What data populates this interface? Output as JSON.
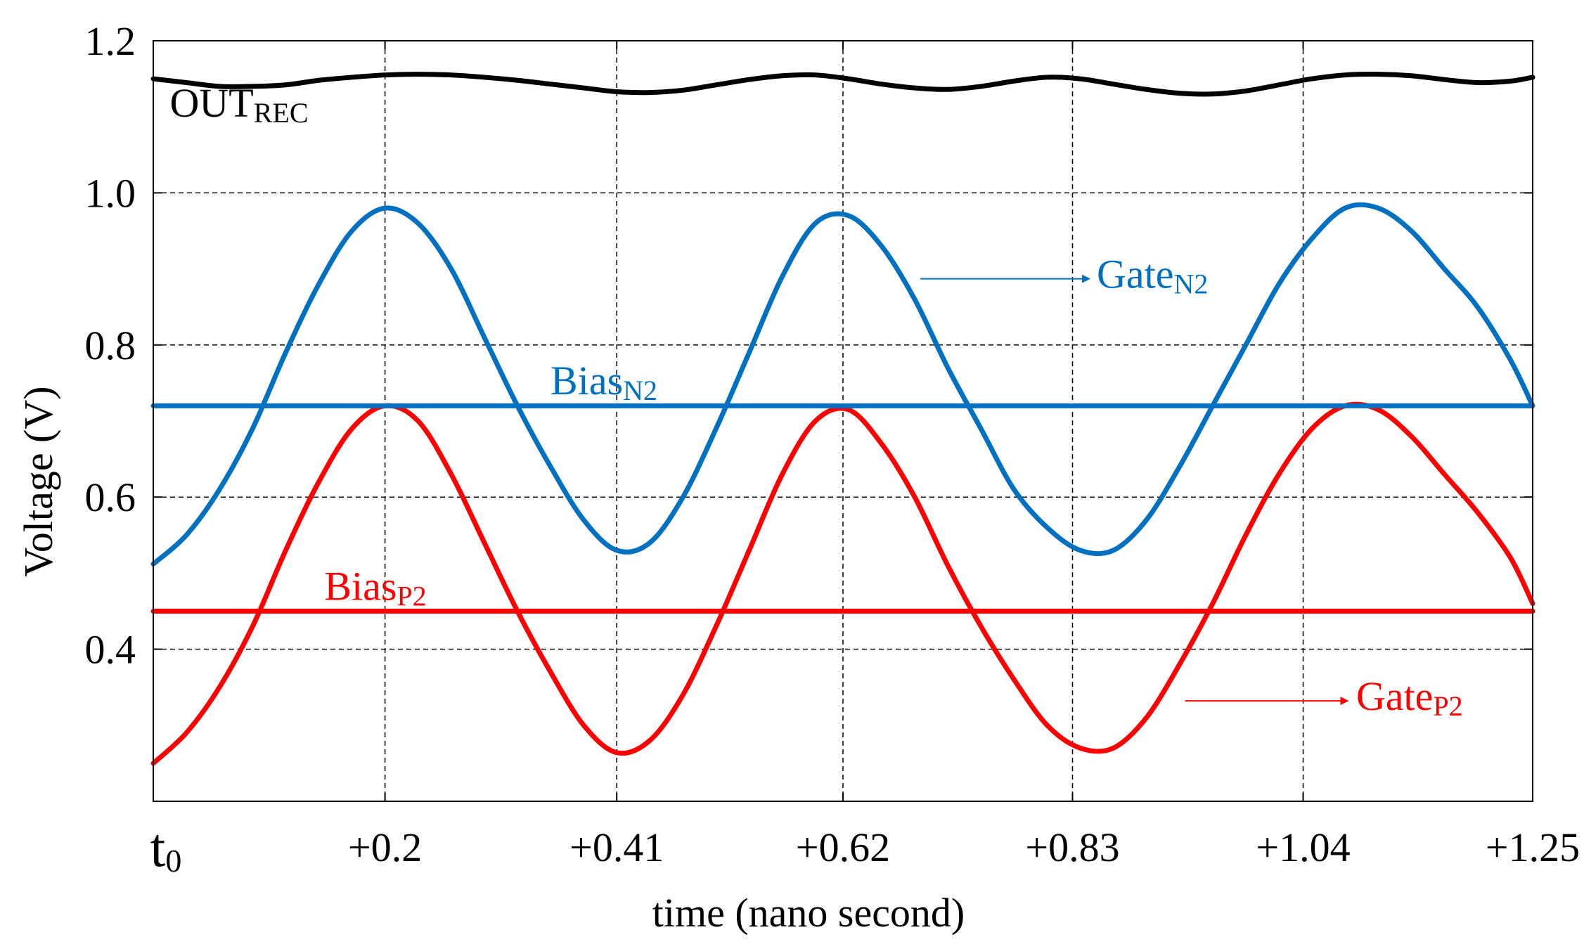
{
  "chart_data": {
    "type": "line",
    "title": "",
    "xlabel": "time (nano second)",
    "ylabel": "Voltage (V)",
    "xlim": [
      0,
      1.25
    ],
    "ylim": [
      0.2,
      1.2
    ],
    "xticks": [
      {
        "value": 0,
        "label": "t",
        "sub": "0"
      },
      {
        "value": 0.21,
        "label": "+0.2",
        "sub": ""
      },
      {
        "value": 0.42,
        "label": "+0.41",
        "sub": ""
      },
      {
        "value": 0.625,
        "label": "+0.62",
        "sub": ""
      },
      {
        "value": 0.833,
        "label": "+0.83",
        "sub": ""
      },
      {
        "value": 1.042,
        "label": "+1.04",
        "sub": ""
      },
      {
        "value": 1.25,
        "label": "+1.25",
        "sub": ""
      }
    ],
    "yticks": [
      {
        "value": 0.4,
        "label": "0.4"
      },
      {
        "value": 0.6,
        "label": "0.6"
      },
      {
        "value": 0.8,
        "label": "0.8"
      },
      {
        "value": 1.0,
        "label": "1.0"
      },
      {
        "value": 1.2,
        "label": "1.2"
      }
    ],
    "grid": true,
    "series": [
      {
        "name": "OUT_REC",
        "color": "#000000",
        "x": [
          0,
          0.03,
          0.06,
          0.09,
          0.12,
          0.15,
          0.18,
          0.21,
          0.24,
          0.27,
          0.3,
          0.33,
          0.36,
          0.39,
          0.42,
          0.45,
          0.48,
          0.51,
          0.54,
          0.57,
          0.6,
          0.63,
          0.66,
          0.69,
          0.72,
          0.75,
          0.78,
          0.81,
          0.84,
          0.87,
          0.9,
          0.93,
          0.96,
          0.99,
          1.02,
          1.05,
          1.08,
          1.11,
          1.14,
          1.17,
          1.2,
          1.23,
          1.25
        ],
        "values": [
          1.15,
          1.145,
          1.14,
          1.14,
          1.142,
          1.148,
          1.152,
          1.155,
          1.156,
          1.155,
          1.152,
          1.148,
          1.143,
          1.138,
          1.133,
          1.132,
          1.135,
          1.142,
          1.149,
          1.154,
          1.155,
          1.15,
          1.143,
          1.138,
          1.136,
          1.14,
          1.147,
          1.152,
          1.15,
          1.143,
          1.136,
          1.131,
          1.13,
          1.134,
          1.142,
          1.15,
          1.155,
          1.156,
          1.154,
          1.149,
          1.145,
          1.147,
          1.152
        ]
      },
      {
        "name": "Gate_N2",
        "color": "#0070c0",
        "x": [
          0,
          0.03,
          0.06,
          0.09,
          0.12,
          0.15,
          0.18,
          0.21,
          0.24,
          0.27,
          0.3,
          0.33,
          0.36,
          0.39,
          0.42,
          0.45,
          0.48,
          0.51,
          0.54,
          0.57,
          0.6,
          0.63,
          0.66,
          0.69,
          0.72,
          0.75,
          0.78,
          0.81,
          0.84,
          0.87,
          0.9,
          0.93,
          0.96,
          0.99,
          1.02,
          1.05,
          1.08,
          1.11,
          1.14,
          1.17,
          1.2,
          1.23,
          1.25
        ],
        "values": [
          0.512,
          0.55,
          0.61,
          0.69,
          0.79,
          0.88,
          0.95,
          0.98,
          0.96,
          0.9,
          0.81,
          0.72,
          0.64,
          0.57,
          0.53,
          0.54,
          0.6,
          0.69,
          0.79,
          0.89,
          0.96,
          0.97,
          0.93,
          0.86,
          0.77,
          0.69,
          0.61,
          0.56,
          0.53,
          0.53,
          0.57,
          0.64,
          0.72,
          0.8,
          0.88,
          0.94,
          0.98,
          0.98,
          0.95,
          0.9,
          0.85,
          0.78,
          0.72
        ]
      },
      {
        "name": "Gate_P2",
        "color": "#ff0000",
        "x": [
          0,
          0.03,
          0.06,
          0.09,
          0.12,
          0.15,
          0.18,
          0.21,
          0.24,
          0.27,
          0.3,
          0.33,
          0.36,
          0.39,
          0.42,
          0.45,
          0.48,
          0.51,
          0.54,
          0.57,
          0.6,
          0.63,
          0.66,
          0.69,
          0.72,
          0.75,
          0.78,
          0.81,
          0.84,
          0.87,
          0.9,
          0.93,
          0.96,
          0.99,
          1.02,
          1.05,
          1.08,
          1.11,
          1.14,
          1.17,
          1.2,
          1.23,
          1.25
        ],
        "values": [
          0.25,
          0.29,
          0.35,
          0.43,
          0.53,
          0.62,
          0.69,
          0.72,
          0.7,
          0.63,
          0.54,
          0.45,
          0.37,
          0.3,
          0.264,
          0.28,
          0.34,
          0.43,
          0.53,
          0.63,
          0.7,
          0.715,
          0.67,
          0.6,
          0.51,
          0.43,
          0.36,
          0.3,
          0.27,
          0.27,
          0.31,
          0.38,
          0.46,
          0.55,
          0.63,
          0.69,
          0.72,
          0.715,
          0.68,
          0.63,
          0.58,
          0.52,
          0.46
        ]
      },
      {
        "name": "Bias_N2",
        "color": "#0070c0",
        "x": [
          0,
          1.25
        ],
        "values": [
          0.72,
          0.72
        ]
      },
      {
        "name": "Bias_P2",
        "color": "#ff0000",
        "x": [
          0,
          1.25
        ],
        "values": [
          0.45,
          0.45
        ]
      }
    ],
    "annotations": [
      {
        "id": "out",
        "main": "OUT",
        "sub": "REC",
        "color": "#000000",
        "x": 0.015,
        "y": 1.1
      },
      {
        "id": "gaten2",
        "main": "Gate",
        "sub": "N2",
        "color": "#0070c0",
        "x": 0.855,
        "y": 0.875,
        "arrow_from_x": 0.695,
        "arrow_to_x": 0.848,
        "arrow_y": 0.887
      },
      {
        "id": "biasn2",
        "main": "Bias",
        "sub": "N2",
        "color": "#0070c0",
        "x": 0.36,
        "y": 0.735
      },
      {
        "id": "biasp2",
        "main": "Bias",
        "sub": "P2",
        "color": "#ff0000",
        "x": 0.155,
        "y": 0.465
      },
      {
        "id": "gatep2",
        "main": "Gate",
        "sub": "P2",
        "color": "#ff0000",
        "x": 1.09,
        "y": 0.32,
        "arrow_from_x": 0.935,
        "arrow_to_x": 1.082,
        "arrow_y": 0.332
      }
    ]
  }
}
